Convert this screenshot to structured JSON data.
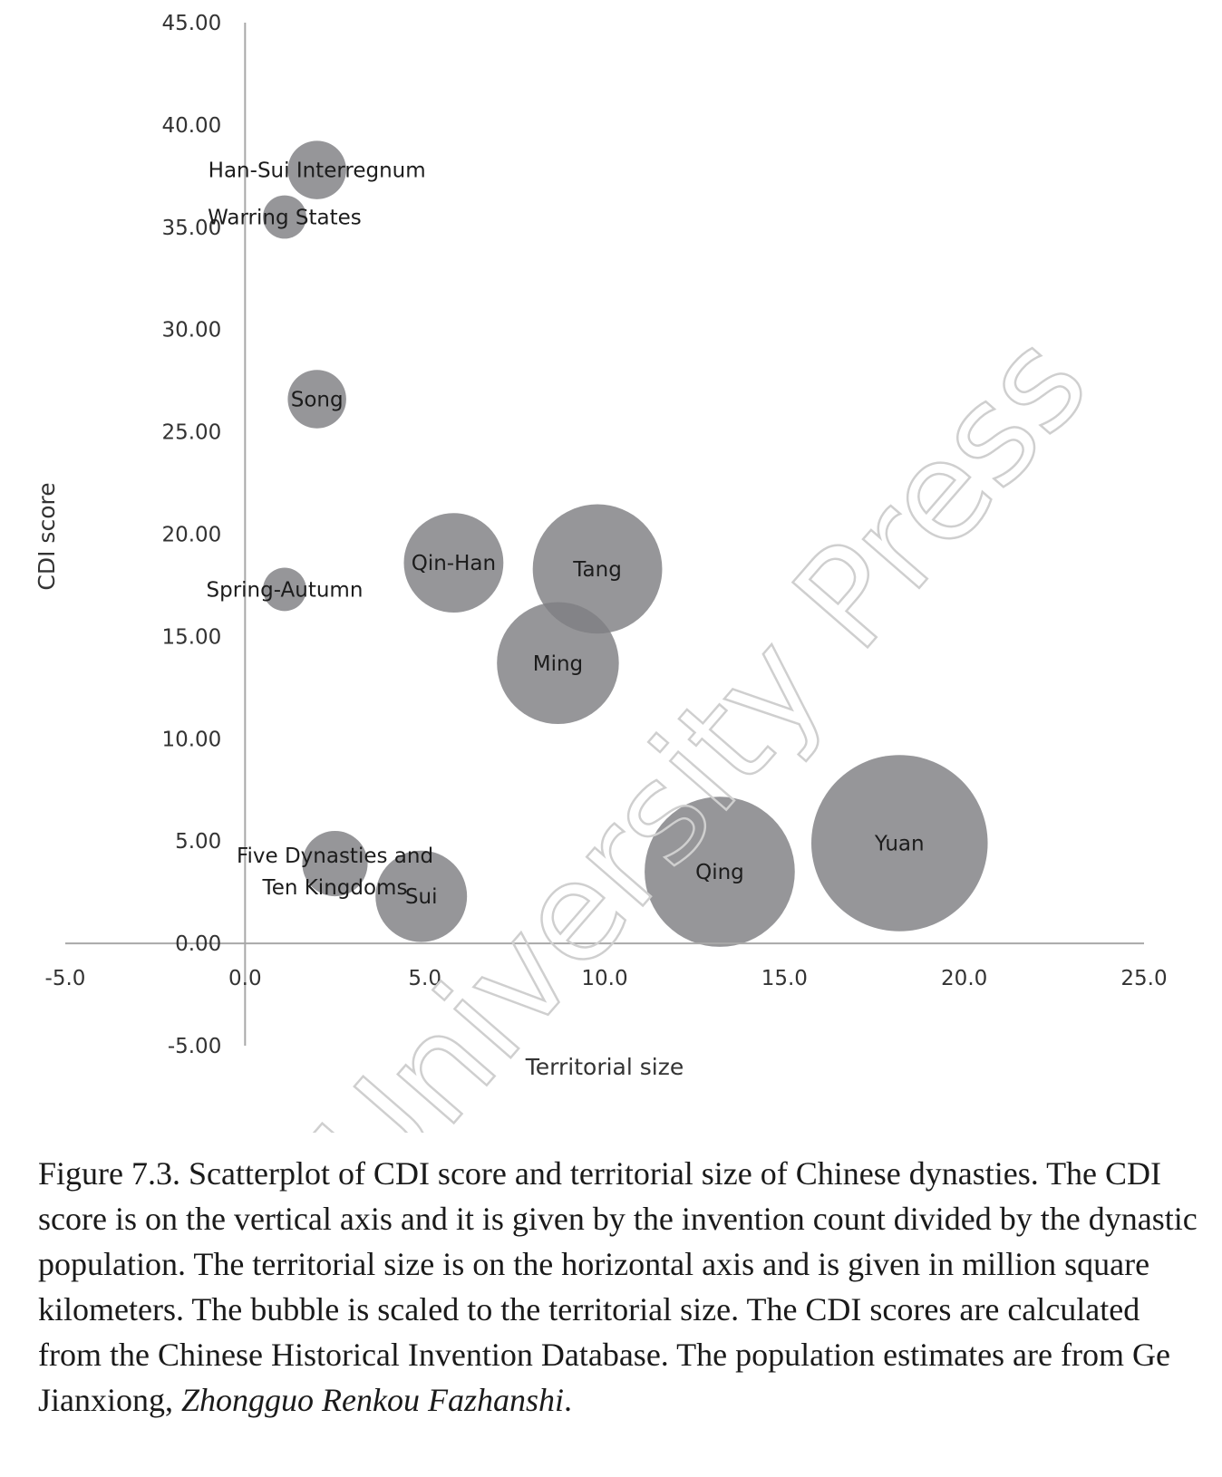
{
  "chart_data": {
    "type": "bubble",
    "xlabel": "Territorial size",
    "ylabel": "CDI score",
    "xlim": [
      -5,
      25
    ],
    "ylim": [
      -5,
      45
    ],
    "x_ticks": [
      "-5.0",
      "0.0",
      "5.0",
      "10.0",
      "15.0",
      "20.0",
      "25.0"
    ],
    "y_ticks": [
      "-5.00",
      "0.00",
      "5.00",
      "10.00",
      "15.00",
      "20.00",
      "25.00",
      "30.00",
      "35.00",
      "40.00",
      "45.00"
    ],
    "grid": false,
    "bubble_color": "#7f7f82",
    "bubble_size_encodes": "territorial size",
    "points": [
      {
        "label": "Han-Sui Interregnum",
        "x": 2.0,
        "y": 37.8,
        "size": 2.0
      },
      {
        "label": "Warring States",
        "x": 1.1,
        "y": 35.5,
        "size": 1.1
      },
      {
        "label": "Song",
        "x": 2.0,
        "y": 26.6,
        "size": 2.0
      },
      {
        "label": "Spring-Autumn",
        "x": 1.1,
        "y": 17.3,
        "size": 1.1
      },
      {
        "label": "Qin-Han",
        "x": 5.8,
        "y": 18.6,
        "size": 5.8
      },
      {
        "label": "Tang",
        "x": 9.8,
        "y": 18.3,
        "size": 9.8
      },
      {
        "label": "Ming",
        "x": 8.7,
        "y": 13.7,
        "size": 8.7
      },
      {
        "label": "Five Dynasties and Ten Kingdoms",
        "x": 2.5,
        "y": 3.9,
        "size": 2.5
      },
      {
        "label": "Sui",
        "x": 4.9,
        "y": 2.3,
        "size": 4.9
      },
      {
        "label": "Qing",
        "x": 13.2,
        "y": 3.5,
        "size": 13.2
      },
      {
        "label": "Yuan",
        "x": 18.2,
        "y": 4.9,
        "size": 18.2
      }
    ]
  },
  "watermark": "Yale University Press",
  "caption": {
    "main": "Figure 7.3. Scatterplot of CDI score and territorial size of Chinese dynasties. The CDI score is on the vertical axis and it is given by the invention count divided by the dynastic population. The territorial size is on the horizontal axis and is given in million square kilometers. The bubble is scaled to the territorial size. The CDI scores are calculated from the Chinese Historical Invention Database. The population estimates are from Ge Jianxiong, ",
    "book_title": "Zhongguo Renkou Fazhanshi",
    "end": "."
  }
}
